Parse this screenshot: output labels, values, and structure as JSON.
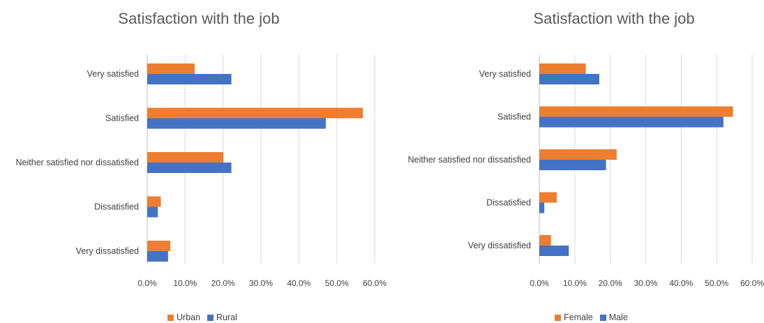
{
  "chart_data": [
    {
      "type": "bar",
      "orientation": "horizontal",
      "title": "Satisfaction with the job",
      "categories": [
        "Very satisfied",
        "Satisfied",
        "Neither satisfied nor dissatisfied",
        "Dissatisfied",
        "Very dissatisfied"
      ],
      "series": [
        {
          "name": "Urban",
          "color": "#ED7D31",
          "values": [
            12.5,
            56.9,
            20.1,
            3.6,
            6.1
          ]
        },
        {
          "name": "Rural",
          "color": "#4472C4",
          "values": [
            22.2,
            47.1,
            22.2,
            2.8,
            5.5
          ]
        }
      ],
      "xlim": [
        0,
        60
      ],
      "xticks": [
        "0.0%",
        "10.0%",
        "20.0%",
        "30.0%",
        "40.0%",
        "50.0%",
        "60.0%"
      ],
      "grid": true,
      "legend": "bottom"
    },
    {
      "type": "bar",
      "orientation": "horizontal",
      "title": "Satisfaction with the job",
      "categories": [
        "Very satisfied",
        "Satisfied",
        "Neither satisfied nor dissatisfied",
        "Dissatisfied",
        "Very dissatisfied"
      ],
      "series": [
        {
          "name": "Female",
          "color": "#ED7D31",
          "values": [
            13.1,
            54.6,
            21.8,
            4.9,
            3.3
          ]
        },
        {
          "name": "Male",
          "color": "#4472C4",
          "values": [
            16.9,
            51.9,
            18.8,
            1.4,
            8.3
          ]
        }
      ],
      "xlim": [
        0,
        60
      ],
      "xticks": [
        "0.0%",
        "10.0%",
        "20.0%",
        "30.0%",
        "40.0%",
        "50.0%",
        "60.0%"
      ],
      "grid": true,
      "legend": "bottom"
    }
  ]
}
